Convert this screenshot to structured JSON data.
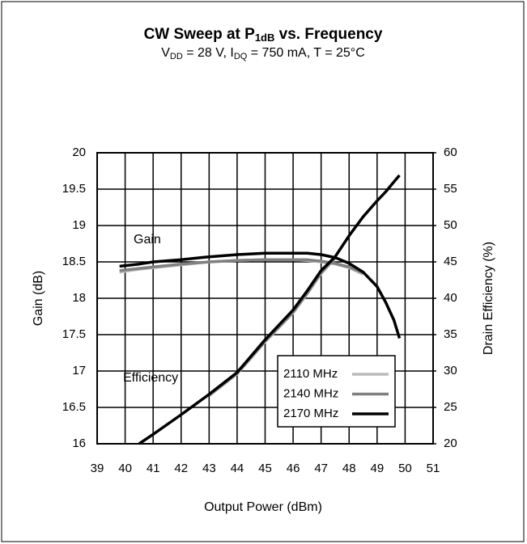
{
  "chart_data": {
    "type": "line",
    "title": [
      "CW Sweep at P",
      "1dB",
      " vs. Frequency"
    ],
    "subtitle": [
      "V",
      "DD",
      "  = 28 V, I",
      "DQ",
      " = 750 mA, T = 25°C"
    ],
    "x_label": "Output Power (dBm)",
    "y_label": "Gain (dB)",
    "y2_label": "Drain Efficiency (%)",
    "annotations": [
      "Gain",
      "Efficiency"
    ],
    "x": [
      39.8,
      40.5,
      41,
      42,
      43,
      44,
      45,
      46,
      46.5,
      47,
      47.5,
      48,
      48.5,
      49,
      49.3,
      49.6,
      49.8
    ],
    "series": [
      {
        "name": "2110 MHz",
        "color": "#bcbcbc",
        "values": [
          18.36,
          18.4,
          18.42,
          18.46,
          18.5,
          18.52,
          18.53,
          18.53,
          18.52,
          18.5,
          18.47,
          18.42,
          18.33,
          null,
          null,
          null,
          null
        ],
        "y2_values": [
          null,
          null,
          null,
          null,
          26.6,
          29.6,
          34,
          38,
          40.6,
          43.4,
          45.5,
          null,
          null,
          null,
          null,
          null,
          null
        ]
      },
      {
        "name": "2140 MHz",
        "color": "#808080",
        "values": [
          18.38,
          18.41,
          18.43,
          18.47,
          18.5,
          18.52,
          18.53,
          18.53,
          18.53,
          18.51,
          18.48,
          18.43,
          18.35,
          null,
          null,
          null,
          null
        ],
        "y2_values": [
          null,
          null,
          null,
          null,
          26.7,
          29.7,
          34.1,
          38.1,
          40.7,
          43.5,
          45.6,
          null,
          null,
          null,
          null,
          null,
          null
        ]
      },
      {
        "name": "2170 MHz",
        "color": "#000000",
        "values": [
          18.44,
          18.47,
          18.5,
          18.53,
          18.57,
          18.6,
          18.62,
          18.62,
          18.62,
          18.6,
          18.56,
          18.48,
          18.36,
          18.16,
          17.95,
          17.7,
          17.45
        ],
        "y2_values": [
          null,
          20,
          21.3,
          24,
          26.8,
          29.8,
          34.3,
          38.4,
          41,
          43.8,
          45.7,
          48.6,
          51.2,
          53.4,
          54.6,
          56,
          56.9
        ]
      }
    ],
    "xlim": [
      39,
      51
    ],
    "xticks": [
      39,
      40,
      41,
      42,
      43,
      44,
      45,
      46,
      47,
      48,
      49,
      50,
      51
    ],
    "ylim": [
      16,
      20
    ],
    "yticks": [
      16,
      16.5,
      17,
      17.5,
      18,
      18.5,
      19,
      19.5,
      20
    ],
    "y2lim": [
      20,
      60
    ],
    "y2ticks": [
      20,
      25,
      30,
      35,
      40,
      45,
      50,
      55,
      60
    ],
    "grid": true,
    "legend": "lower right"
  }
}
